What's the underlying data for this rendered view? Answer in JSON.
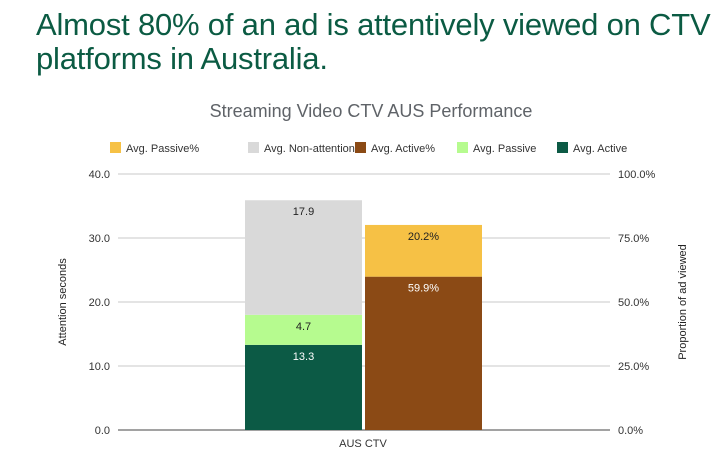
{
  "headline": "Almost 80% of an ad is attentively viewed on CTV platforms in Australia.",
  "chart_data": {
    "type": "bar",
    "subtype": "stacked-dual-axis",
    "title": "Streaming Video CTV AUS Performance",
    "categories": [
      "AUS CTV"
    ],
    "ylabel_left": "Attention seconds",
    "ylabel_right": "Proportion of ad viewed",
    "ylim_left": [
      0,
      40
    ],
    "ylim_right": [
      0,
      100
    ],
    "yticks_left": [
      "0.0",
      "10.0",
      "20.0",
      "30.0",
      "40.0"
    ],
    "yticks_right": [
      "0.0%",
      "25.0%",
      "50.0%",
      "75.0%",
      "100.0%"
    ],
    "grid": true,
    "legend_position": "top",
    "legend": [
      {
        "name": "Avg. Passive%",
        "color": "#f6c145"
      },
      {
        "name": "Avg. Non-attention",
        "color": "#d9d9d9"
      },
      {
        "name": "Avg. Active%",
        "color": "#8b4a15"
      },
      {
        "name": "Avg. Passive",
        "color": "#b6fb8f"
      },
      {
        "name": "Avg. Active",
        "color": "#0c5a45"
      }
    ],
    "left_stack": {
      "axis": "left",
      "segments": [
        {
          "name": "Avg. Active",
          "value": 13.3,
          "label": "13.3",
          "color": "#0c5a45",
          "label_color": "#ffffff"
        },
        {
          "name": "Avg. Passive",
          "value": 4.7,
          "label": "4.7",
          "color": "#b6fb8f",
          "label_color": "#222222"
        },
        {
          "name": "Avg. Non-attention",
          "value": 17.9,
          "label": "17.9",
          "color": "#d9d9d9",
          "label_color": "#222222"
        }
      ]
    },
    "right_stack": {
      "axis": "right",
      "segments": [
        {
          "name": "Avg. Active%",
          "value": 59.9,
          "label": "59.9%",
          "color": "#8b4a15",
          "label_color": "#ffffff"
        },
        {
          "name": "Avg. Passive%",
          "value": 20.2,
          "label": "20.2%",
          "color": "#f6c145",
          "label_color": "#222222"
        }
      ]
    }
  }
}
